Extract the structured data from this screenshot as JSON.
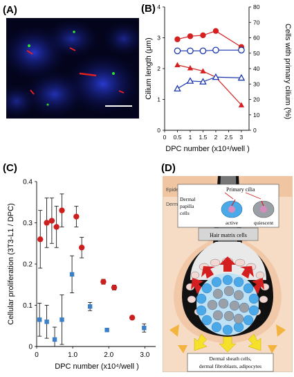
{
  "panels": {
    "a": {
      "label": "(A)"
    },
    "b": {
      "label": "(B)"
    },
    "c": {
      "label": "(C)"
    },
    "d": {
      "label": "(D)"
    }
  },
  "chart_data": [
    {
      "type": "line",
      "panel": "B",
      "xlabel": "DPC number (x10⁴/well )",
      "ylabel_left": "Cilium length (μm)",
      "ylabel_right": "Cells with primary cilium (%)",
      "x_ticks": [
        "0",
        "0.5",
        "1",
        "1.5",
        "2",
        "2.5",
        "3"
      ],
      "y_left_ticks": [
        "0",
        "1",
        "2",
        "3",
        "4"
      ],
      "y_right_ticks": [
        "0",
        "10",
        "20",
        "30",
        "40",
        "50",
        "60",
        "70",
        "80"
      ],
      "xlim": [
        0,
        3.3
      ],
      "ylim_left": [
        0,
        4
      ],
      "ylim_right": [
        0,
        80
      ],
      "series": [
        {
          "axis": "left",
          "color": "#d42020",
          "marker": "circle-filled",
          "x": [
            0.5,
            1,
            1.5,
            2,
            3
          ],
          "y": [
            2.95,
            3.05,
            3.08,
            3.22,
            2.7
          ]
        },
        {
          "axis": "left",
          "color": "#d42020",
          "marker": "triangle-filled",
          "x": [
            0.5,
            1,
            1.5,
            2,
            3
          ],
          "y": [
            2.12,
            2.02,
            1.92,
            1.72,
            0.82
          ]
        },
        {
          "axis": "right",
          "color": "#1a35b0",
          "marker": "circle-open",
          "x": [
            0.5,
            1,
            1.5,
            2,
            3
          ],
          "y": [
            51.5,
            51.5,
            51.5,
            52,
            52
          ]
        },
        {
          "axis": "right",
          "color": "#1a35b0",
          "marker": "triangle-open",
          "x": [
            0.5,
            1,
            1.5,
            2,
            3
          ],
          "y": [
            27,
            32,
            31.5,
            34.5,
            34
          ]
        }
      ]
    },
    {
      "type": "scatter",
      "panel": "C",
      "xlabel": "DPC number (x10⁴/well )",
      "ylabel": "Cellular proliferation (3T3-L1 / DPC)",
      "x_ticks": [
        "0",
        "1.0",
        "2.0",
        "3.0"
      ],
      "y_ticks": [
        "0",
        "0.1",
        "0.2",
        "0.3",
        "0.4"
      ],
      "xlim": [
        0,
        3.3
      ],
      "ylim": [
        0,
        0.4
      ],
      "series": [
        {
          "color": "#cc1f1f",
          "marker": "circle",
          "points": [
            {
              "x": 0.1,
              "y": 0.26,
              "err": 0.07
            },
            {
              "x": 0.28,
              "y": 0.3,
              "err": 0.06
            },
            {
              "x": 0.42,
              "y": 0.305,
              "err": 0.055
            },
            {
              "x": 0.55,
              "y": 0.29,
              "err": 0.05
            },
            {
              "x": 0.7,
              "y": 0.33,
              "err": 0.04
            },
            {
              "x": 1.1,
              "y": 0.315,
              "err": 0.025
            },
            {
              "x": 1.25,
              "y": 0.24,
              "err": 0.025
            },
            {
              "x": 1.85,
              "y": 0.157,
              "err": 0.006
            },
            {
              "x": 2.15,
              "y": 0.143,
              "err": 0.006
            },
            {
              "x": 2.65,
              "y": 0.07,
              "err": 0.0
            }
          ]
        },
        {
          "color": "#3a7fc8",
          "marker": "square",
          "points": [
            {
              "x": 0.08,
              "y": 0.065,
              "err": 0.04
            },
            {
              "x": 0.28,
              "y": 0.06,
              "err": 0.04
            },
            {
              "x": 0.5,
              "y": 0.017,
              "err": 0.03
            },
            {
              "x": 0.7,
              "y": 0.065,
              "err": 0.06
            },
            {
              "x": 0.98,
              "y": 0.175,
              "err": 0.045
            },
            {
              "x": 1.48,
              "y": 0.097,
              "err": 0.01
            },
            {
              "x": 1.95,
              "y": 0.04,
              "err": 0.0
            },
            {
              "x": 2.98,
              "y": 0.045,
              "err": 0.01
            }
          ]
        }
      ]
    }
  ],
  "diagram": {
    "epidermis": "Epidermis",
    "dermis": "Dermis",
    "inset_title": "Primary cilia",
    "dpc_label": [
      "Dermal",
      "papilla",
      "cells"
    ],
    "active": "active",
    "quiescent": "quiescent",
    "hair_matrix": "Hair matrix cells",
    "bottom_text": [
      "Dermal sheath cells,",
      "dermal fibroblasts, adipocytes"
    ]
  }
}
